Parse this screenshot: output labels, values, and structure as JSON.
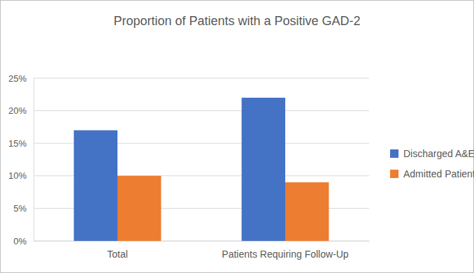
{
  "chart_data": {
    "type": "bar",
    "title": "Proportion of Patients with a Positive GAD-2",
    "categories": [
      "Total",
      "Patients Requiring Follow-Up"
    ],
    "series": [
      {
        "name": "Discharged A&E",
        "color": "#4472c4",
        "values": [
          17,
          22
        ]
      },
      {
        "name": "Admitted Patients",
        "color": "#ed7d31",
        "values": [
          10,
          9
        ]
      }
    ],
    "ylim": [
      0,
      25
    ],
    "yticks": [
      {
        "value": 0,
        "label": "0%"
      },
      {
        "value": 5,
        "label": "5%"
      },
      {
        "value": 10,
        "label": "10%"
      },
      {
        "value": 15,
        "label": "15%"
      },
      {
        "value": 20,
        "label": "20%"
      },
      {
        "value": 25,
        "label": "25%"
      }
    ],
    "grid": true,
    "legend": "right"
  }
}
